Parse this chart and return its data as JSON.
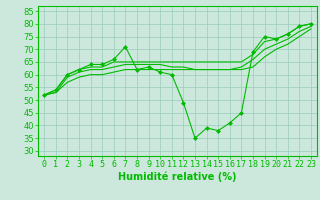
{
  "x": [
    0,
    1,
    2,
    3,
    4,
    5,
    6,
    7,
    8,
    9,
    10,
    11,
    12,
    13,
    14,
    15,
    16,
    17,
    18,
    19,
    20,
    21,
    22,
    23
  ],
  "lines": [
    {
      "y": [
        52,
        54,
        60,
        62,
        64,
        64,
        66,
        71,
        62,
        63,
        61,
        60,
        49,
        35,
        39,
        38,
        41,
        45,
        69,
        75,
        74,
        76,
        79,
        80
      ],
      "marker": true
    },
    {
      "y": [
        52,
        54,
        60,
        62,
        63,
        63,
        65,
        65,
        65,
        65,
        65,
        65,
        65,
        65,
        65,
        65,
        65,
        65,
        68,
        73,
        74,
        76,
        79,
        80
      ],
      "marker": false
    },
    {
      "y": [
        52,
        53,
        59,
        61,
        62,
        62,
        63,
        64,
        64,
        64,
        64,
        63,
        63,
        62,
        62,
        62,
        62,
        63,
        66,
        70,
        72,
        74,
        77,
        79
      ],
      "marker": false
    },
    {
      "y": [
        52,
        53,
        57,
        59,
        60,
        60,
        61,
        62,
        62,
        62,
        62,
        62,
        62,
        62,
        62,
        62,
        62,
        62,
        63,
        67,
        70,
        72,
        75,
        78
      ],
      "marker": false
    }
  ],
  "line_color": "#00bb00",
  "bg_color": "#cce8dc",
  "grid_color": "#99ccbb",
  "xlabel": "Humidité relative (%)",
  "ylabel_ticks": [
    30,
    35,
    40,
    45,
    50,
    55,
    60,
    65,
    70,
    75,
    80,
    85
  ],
  "xlim": [
    -0.5,
    23.5
  ],
  "ylim": [
    28,
    87
  ],
  "xlabel_fontsize": 7,
  "tick_fontsize": 6
}
